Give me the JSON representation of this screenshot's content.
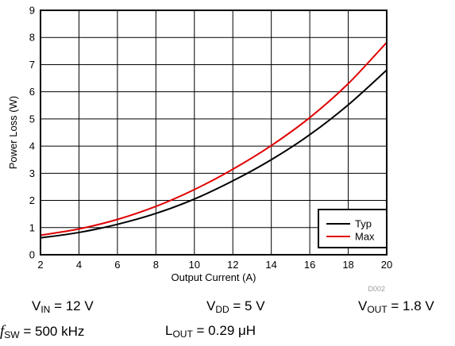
{
  "chart_data": {
    "type": "line",
    "xlabel": "Output Current (A)",
    "ylabel": "Power Loss (W)",
    "xlim": [
      2,
      20
    ],
    "ylim": [
      0,
      9
    ],
    "xticks": [
      "2",
      "4",
      "6",
      "8",
      "10",
      "12",
      "14",
      "16",
      "18",
      "20"
    ],
    "yticks": [
      "0",
      "1",
      "2",
      "3",
      "4",
      "5",
      "6",
      "7",
      "8",
      "9"
    ],
    "grid": true,
    "legend_position": "bottom-right",
    "watermark": "D002",
    "series": [
      {
        "name": "Typ",
        "color": "#000000",
        "x": [
          2,
          4,
          6,
          8,
          10,
          12,
          14,
          16,
          18,
          20
        ],
        "y": [
          0.62,
          0.82,
          1.12,
          1.52,
          2.05,
          2.72,
          3.5,
          4.42,
          5.52,
          6.8
        ]
      },
      {
        "name": "Max",
        "color": "#e00000",
        "x": [
          2,
          4,
          6,
          8,
          10,
          12,
          14,
          16,
          18,
          20
        ],
        "y": [
          0.72,
          0.95,
          1.3,
          1.78,
          2.4,
          3.15,
          4.02,
          5.05,
          6.3,
          7.82
        ]
      }
    ]
  },
  "conditions": {
    "vin": {
      "sym": "V",
      "sub": "IN",
      "rest": " = 12 V"
    },
    "vdd": {
      "sym": "V",
      "sub": "DD",
      "rest": " = 5 V"
    },
    "vout": {
      "sym": "V",
      "sub": "OUT",
      "rest": " = 1.8 V"
    },
    "fsw": {
      "sym": "f",
      "sub": "SW",
      "rest": " = 500 kHz"
    },
    "lout": {
      "sym": "L",
      "sub": "OUT",
      "rest": " = 0.29 μH"
    }
  }
}
